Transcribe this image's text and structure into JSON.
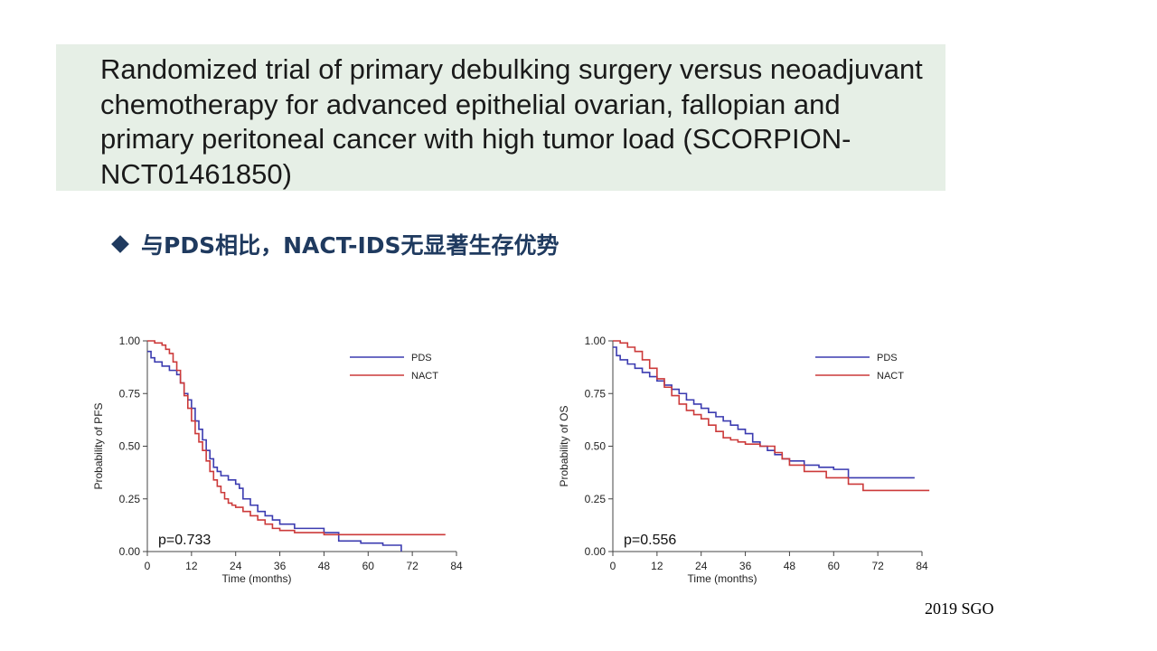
{
  "slide": {
    "title": "Randomized trial of primary debulking surgery versus neoadjuvant chemotherapy for advanced epithelial ovarian, fallopian and primary peritoneal cancer with high tumor load (SCORPION-NCT01461850)",
    "subtitle": "与PDS相比，NACT-IDS无显著生存优势",
    "footer": "2019 SGO"
  },
  "colors": {
    "PDS": "#3b3bb0",
    "NACT": "#cc3a3a",
    "title_bg": "#e6efe6",
    "subtitle": "#1f3a5f"
  },
  "chart_data": [
    {
      "type": "line",
      "step": true,
      "xlabel": "Time (months)",
      "ylabel": "Probability of PFS",
      "xlim": [
        0,
        84
      ],
      "ylim": [
        0,
        1
      ],
      "xticks": [
        0,
        12,
        24,
        36,
        48,
        60,
        72,
        84
      ],
      "yticks": [
        "0.00",
        "0.25",
        "0.50",
        "0.75",
        "1.00"
      ],
      "annotation": "p=0.733",
      "legend_position": "top-right",
      "series": [
        {
          "name": "PDS",
          "color": "#3b3bb0",
          "x": [
            0,
            1,
            2,
            4,
            6,
            8,
            9,
            10,
            11,
            12,
            13,
            14,
            15,
            16,
            17,
            18,
            19,
            20,
            22,
            24,
            25,
            26,
            28,
            30,
            32,
            34,
            36,
            40,
            48,
            52,
            58,
            64,
            69
          ],
          "y": [
            0.95,
            0.92,
            0.9,
            0.88,
            0.86,
            0.84,
            0.8,
            0.75,
            0.72,
            0.68,
            0.62,
            0.58,
            0.53,
            0.48,
            0.44,
            0.4,
            0.38,
            0.36,
            0.34,
            0.32,
            0.3,
            0.25,
            0.22,
            0.19,
            0.17,
            0.15,
            0.13,
            0.11,
            0.09,
            0.05,
            0.04,
            0.03,
            0.0
          ]
        },
        {
          "name": "NACT",
          "color": "#cc3a3a",
          "x": [
            0,
            2,
            4,
            5,
            6,
            7,
            8,
            9,
            10,
            11,
            12,
            13,
            14,
            15,
            16,
            17,
            18,
            19,
            20,
            21,
            22,
            23,
            24,
            26,
            28,
            30,
            32,
            34,
            36,
            40,
            48,
            81
          ],
          "y": [
            1.0,
            0.99,
            0.98,
            0.96,
            0.94,
            0.9,
            0.86,
            0.8,
            0.74,
            0.68,
            0.62,
            0.56,
            0.52,
            0.48,
            0.43,
            0.38,
            0.34,
            0.31,
            0.28,
            0.25,
            0.23,
            0.22,
            0.21,
            0.19,
            0.17,
            0.15,
            0.13,
            0.11,
            0.1,
            0.09,
            0.08,
            0.08
          ]
        }
      ]
    },
    {
      "type": "line",
      "step": true,
      "xlabel": "Time (months)",
      "ylabel": "Probability of OS",
      "xlim": [
        0,
        84
      ],
      "ylim": [
        0,
        1
      ],
      "xticks": [
        0,
        12,
        24,
        36,
        48,
        60,
        72,
        84
      ],
      "yticks": [
        "0.00",
        "0.25",
        "0.50",
        "0.75",
        "1.00"
      ],
      "annotation": "p=0.556",
      "legend_position": "top-right",
      "series": [
        {
          "name": "PDS",
          "color": "#3b3bb0",
          "x": [
            0,
            1,
            2,
            4,
            6,
            8,
            10,
            12,
            14,
            16,
            18,
            20,
            22,
            24,
            26,
            28,
            30,
            32,
            34,
            36,
            38,
            40,
            42,
            44,
            46,
            48,
            52,
            56,
            60,
            64,
            82
          ],
          "y": [
            0.97,
            0.93,
            0.91,
            0.89,
            0.87,
            0.85,
            0.83,
            0.81,
            0.79,
            0.77,
            0.75,
            0.72,
            0.7,
            0.68,
            0.66,
            0.64,
            0.62,
            0.6,
            0.58,
            0.56,
            0.52,
            0.5,
            0.48,
            0.46,
            0.44,
            0.43,
            0.41,
            0.4,
            0.39,
            0.35,
            0.35
          ]
        },
        {
          "name": "NACT",
          "color": "#cc3a3a",
          "x": [
            0,
            2,
            4,
            6,
            8,
            10,
            12,
            14,
            16,
            18,
            20,
            22,
            24,
            26,
            28,
            30,
            32,
            34,
            36,
            40,
            44,
            46,
            48,
            52,
            58,
            64,
            68,
            86
          ],
          "y": [
            1.0,
            0.99,
            0.97,
            0.95,
            0.91,
            0.87,
            0.82,
            0.78,
            0.74,
            0.7,
            0.67,
            0.65,
            0.63,
            0.6,
            0.57,
            0.54,
            0.53,
            0.52,
            0.51,
            0.5,
            0.47,
            0.44,
            0.41,
            0.38,
            0.35,
            0.32,
            0.29,
            0.29
          ]
        }
      ]
    }
  ]
}
